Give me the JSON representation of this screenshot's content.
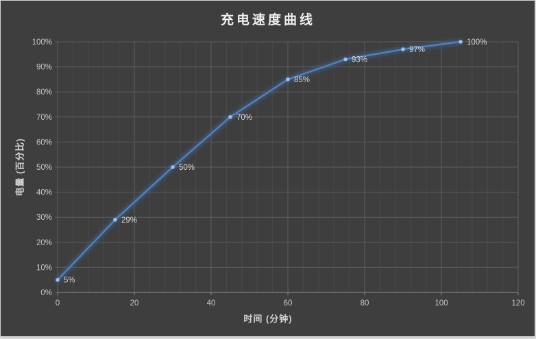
{
  "chart_data": {
    "type": "line",
    "title": "充电速度曲线",
    "xlabel": "时间 (分钟)",
    "ylabel": "电量 (百分比)",
    "x": [
      0,
      15,
      30,
      45,
      60,
      75,
      90,
      105
    ],
    "values": [
      5,
      29,
      50,
      70,
      85,
      93,
      97,
      100
    ],
    "point_labels": [
      "5%",
      "29%",
      "50%",
      "70%",
      "85%",
      "93%",
      "97%",
      "100%"
    ],
    "xlim": [
      0,
      120
    ],
    "ylim": [
      0,
      100
    ],
    "x_tick_values": [
      0,
      20,
      40,
      60,
      80,
      100,
      120
    ],
    "x_tick_labels": [
      "0",
      "20",
      "40",
      "60",
      "80",
      "100",
      "120"
    ],
    "x_minor_step": 4,
    "y_tick_values": [
      0,
      10,
      20,
      30,
      40,
      50,
      60,
      70,
      80,
      90,
      100
    ],
    "y_tick_labels": [
      "0%",
      "10%",
      "20%",
      "30%",
      "40%",
      "50%",
      "60%",
      "70%",
      "80%",
      "90%",
      "100%"
    ],
    "grid": true,
    "legend": "none",
    "marker": "circle",
    "colors": {
      "frame": "#d6d6d6",
      "background": "#3e3e3e",
      "grid_minor": "#4a4a4a",
      "grid_major": "#5d5d5d",
      "axis_line": "#8f8f8f",
      "series_line": "#5282c2",
      "series_glow": "#3f6ca5",
      "marker_fill": "#9cc0ea",
      "title_text": "#f0f0f0",
      "axis_title_text": "#d5d5d5",
      "tick_text": "#c9c9c9",
      "point_label_text": "#d9d9d9"
    }
  }
}
